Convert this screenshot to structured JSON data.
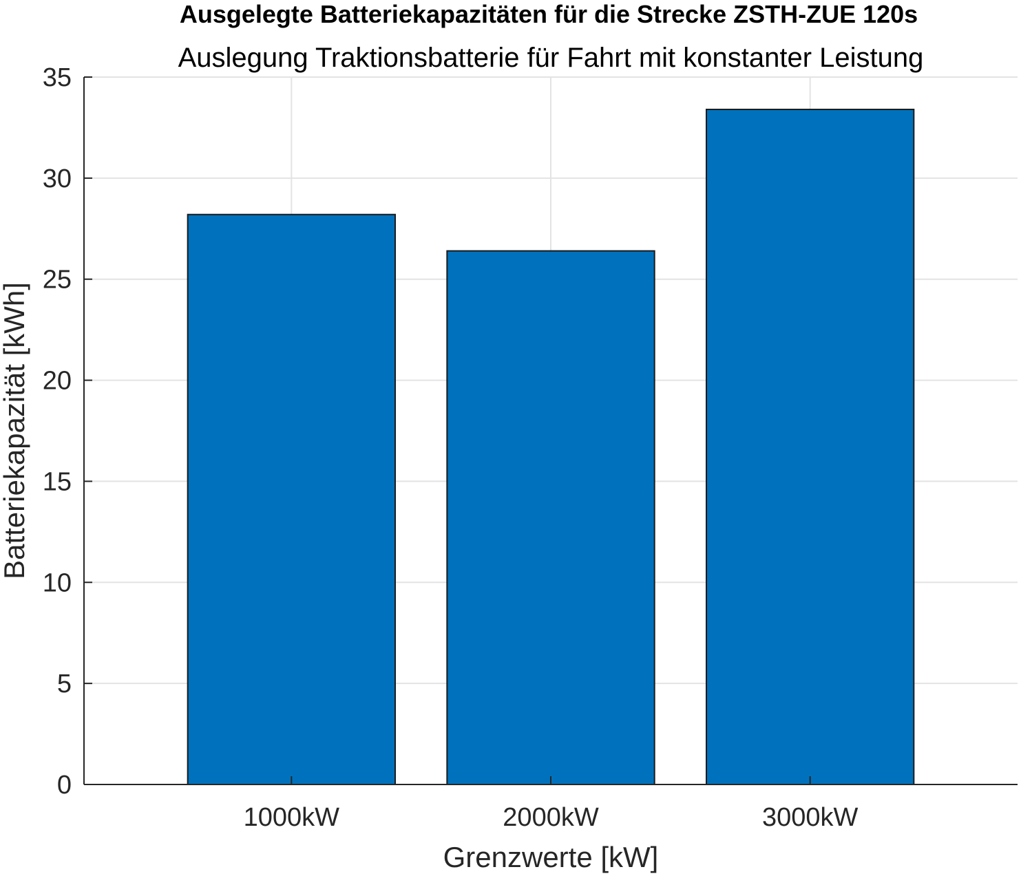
{
  "chart_data": {
    "type": "bar",
    "title": "Ausgelegte Batteriekapazitäten für die Strecke ZSTH-ZUE 120s",
    "subtitle": "Auslegung Traktionsbatterie für Fahrt mit konstanter Leistung",
    "xlabel": "Grenzwerte [kW]",
    "ylabel": "Batteriekapazität [kWh]",
    "categories": [
      "1000kW",
      "2000kW",
      "3000kW"
    ],
    "values": [
      28.2,
      26.4,
      33.4
    ],
    "ylim": [
      0,
      35
    ],
    "yticks": [
      "0",
      "5",
      "10",
      "15",
      "20",
      "25",
      "30",
      "35"
    ],
    "grid": true,
    "bar_color": "#0072bd",
    "edge_color": "#1a1a1a"
  }
}
